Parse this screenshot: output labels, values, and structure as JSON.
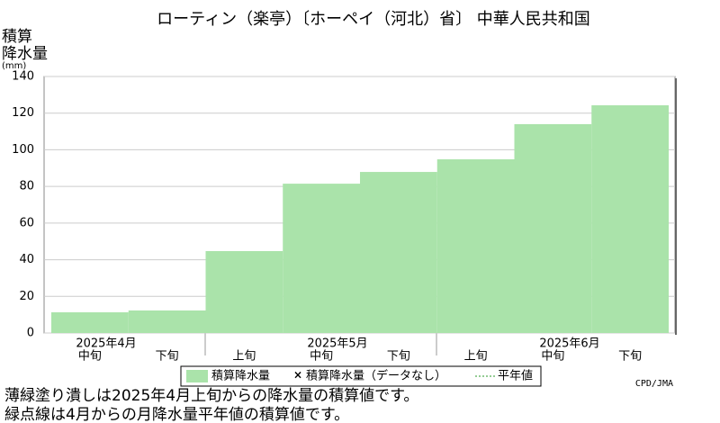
{
  "chart_data": {
    "type": "bar",
    "title": "ローティン（楽亭）〔ホーペイ（河北）省〕 中華人民共和国",
    "ylabel_lines": [
      "積算",
      "降水量",
      "(mm)"
    ],
    "categories": [
      "中旬",
      "下旬",
      "上旬",
      "中旬",
      "下旬",
      "上旬",
      "中旬",
      "下旬"
    ],
    "months": [
      "2025年4月",
      "2025年5月",
      "2025年6月"
    ],
    "series": [
      {
        "name": "積算降水量",
        "color": "#aae3aa",
        "values": [
          11.3,
          12.3,
          44.7,
          81.5,
          87.9,
          94.8,
          114,
          124.3
        ]
      }
    ],
    "legend_extra": [
      "積算降水量（データなし）",
      "平年値"
    ],
    "ylim": [
      0,
      140
    ],
    "yticks": [
      0,
      20,
      40,
      60,
      80,
      100,
      120,
      140
    ],
    "grid": true,
    "notes": [
      "薄緑塗り潰しは2025年4月上旬からの降水量の積算値です。",
      "緑点線は4月からの月降水量平年値の積算値です。"
    ],
    "credit": "CPD/JMA"
  }
}
